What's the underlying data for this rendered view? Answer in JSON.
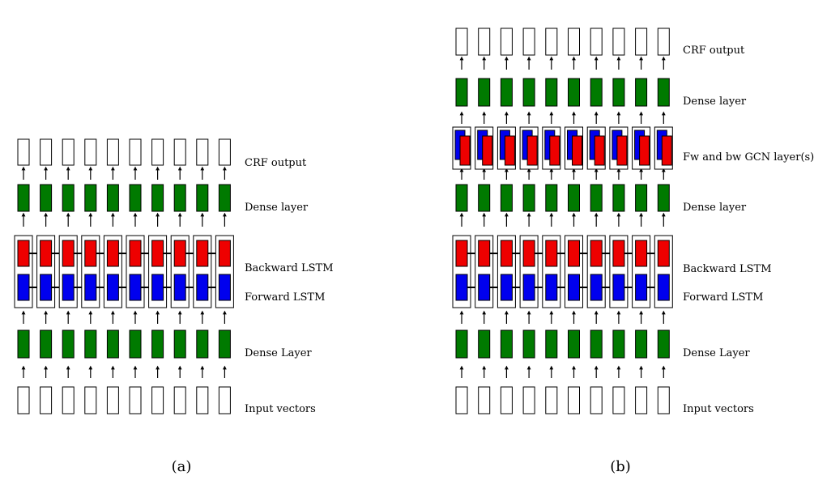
{
  "colors": {
    "dense": "#007a00",
    "forward": "#0000ee",
    "backward": "#ee0000",
    "outline": "#000000",
    "background": "#ffffff"
  },
  "columns": 10,
  "panel_a": {
    "caption": "(a)",
    "labels": {
      "crf_output": "CRF output",
      "dense_top": "Dense layer",
      "backward_lstm": "Backward LSTM",
      "forward_lstm": "Forward LSTM",
      "dense_bottom": "Dense Layer",
      "input_vectors": "Input vectors"
    }
  },
  "panel_b": {
    "caption": "(b)",
    "labels": {
      "crf_output": "CRF output",
      "dense_top": "Dense layer",
      "gcn_layers": "Fw and bw GCN layer(s)",
      "dense_mid": "Dense layer",
      "backward_lstm": "Backward LSTM",
      "forward_lstm": "Forward LSTM",
      "dense_bottom": "Dense Layer",
      "input_vectors": "Input vectors"
    }
  }
}
